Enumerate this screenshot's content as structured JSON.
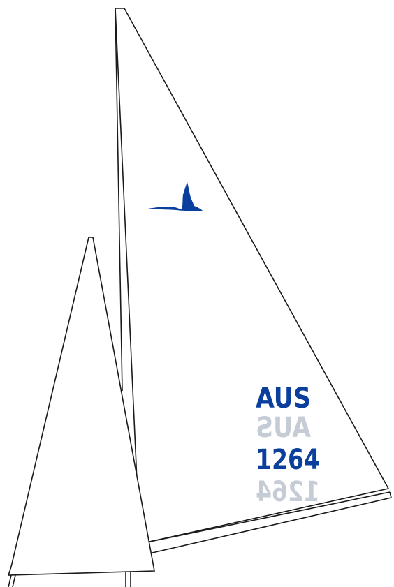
{
  "mainsail": {
    "country_code": "AUS",
    "sail_number": "1264",
    "insignia": "swan-insignia"
  },
  "colors": {
    "outline": "#1a1a1a",
    "insignia": "#0b3f9e",
    "country_front": "#0b3f9e",
    "country_reverse": "#c5ccd6",
    "number_front": "#0b3f9e",
    "number_reverse": "#c5ccd6"
  }
}
